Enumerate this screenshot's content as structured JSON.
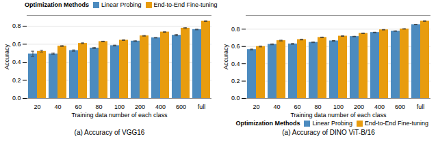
{
  "chart_data": [
    {
      "type": "bar",
      "caption": "(a) Accuracy of  VGG16",
      "xlabel": "Training data number of each class",
      "ylabel": "Accuracy",
      "categories": [
        "20",
        "40",
        "60",
        "80",
        "100",
        "200",
        "400",
        "600",
        "full"
      ],
      "series": [
        {
          "name": "Linear Probing",
          "color": "#4C8BBF",
          "values": [
            0.493,
            0.493,
            0.53,
            0.558,
            0.585,
            0.635,
            0.672,
            0.7,
            0.763
          ],
          "errors": [
            0.03,
            0.008,
            0.007,
            0.006,
            0.005,
            0.003,
            0.003,
            0.007,
            0.004
          ]
        },
        {
          "name": "End-to-End Fine-tuning",
          "color": "#E89C0E",
          "values": [
            0.522,
            0.58,
            0.61,
            0.63,
            0.645,
            0.693,
            0.735,
            0.778,
            0.855
          ],
          "errors": [
            0.01,
            0.005,
            0.005,
            0.004,
            0.004,
            0.004,
            0.003,
            0.005,
            0.003
          ]
        }
      ],
      "legend_title": "Optimization Methods",
      "legend": "upper left",
      "ylim": [
        0.0,
        0.92
      ],
      "yticks": [
        {
          "value": 0.0,
          "label": "0.0"
        },
        0.2,
        0.4,
        0.6,
        0.8
      ],
      "grid": true
    },
    {
      "type": "bar",
      "caption": "(a) Accuracy of  DINO ViT-B/16",
      "xlabel": "Training data number of each class",
      "ylabel": "Accuracy",
      "categories": [
        "20",
        "40",
        "60",
        "80",
        "100",
        "200",
        "400",
        "600",
        "full"
      ],
      "series": [
        {
          "name": "Linear Probing",
          "color": "#4C8BBF",
          "values": [
            0.565,
            0.625,
            0.63,
            0.648,
            0.665,
            0.715,
            0.762,
            0.778,
            0.853
          ],
          "errors": [
            0.005,
            0.005,
            0.005,
            0.004,
            0.004,
            0.003,
            0.003,
            0.003,
            0.003
          ]
        },
        {
          "name": "End-to-End Fine-tuning",
          "color": "#E89C0E",
          "values": [
            0.6,
            0.668,
            0.68,
            0.705,
            0.72,
            0.752,
            0.793,
            0.803,
            0.893
          ],
          "errors": [
            0.005,
            0.005,
            0.005,
            0.004,
            0.004,
            0.004,
            0.003,
            0.003,
            0.003
          ]
        }
      ],
      "legend_title": "Optimization Methods",
      "legend": "lower right",
      "ylim": [
        0.0,
        0.96
      ],
      "yticks": [
        {
          "value": 0.0,
          "label": "0.0"
        },
        0.2,
        0.4,
        0.6,
        0.8
      ],
      "grid": true
    }
  ]
}
